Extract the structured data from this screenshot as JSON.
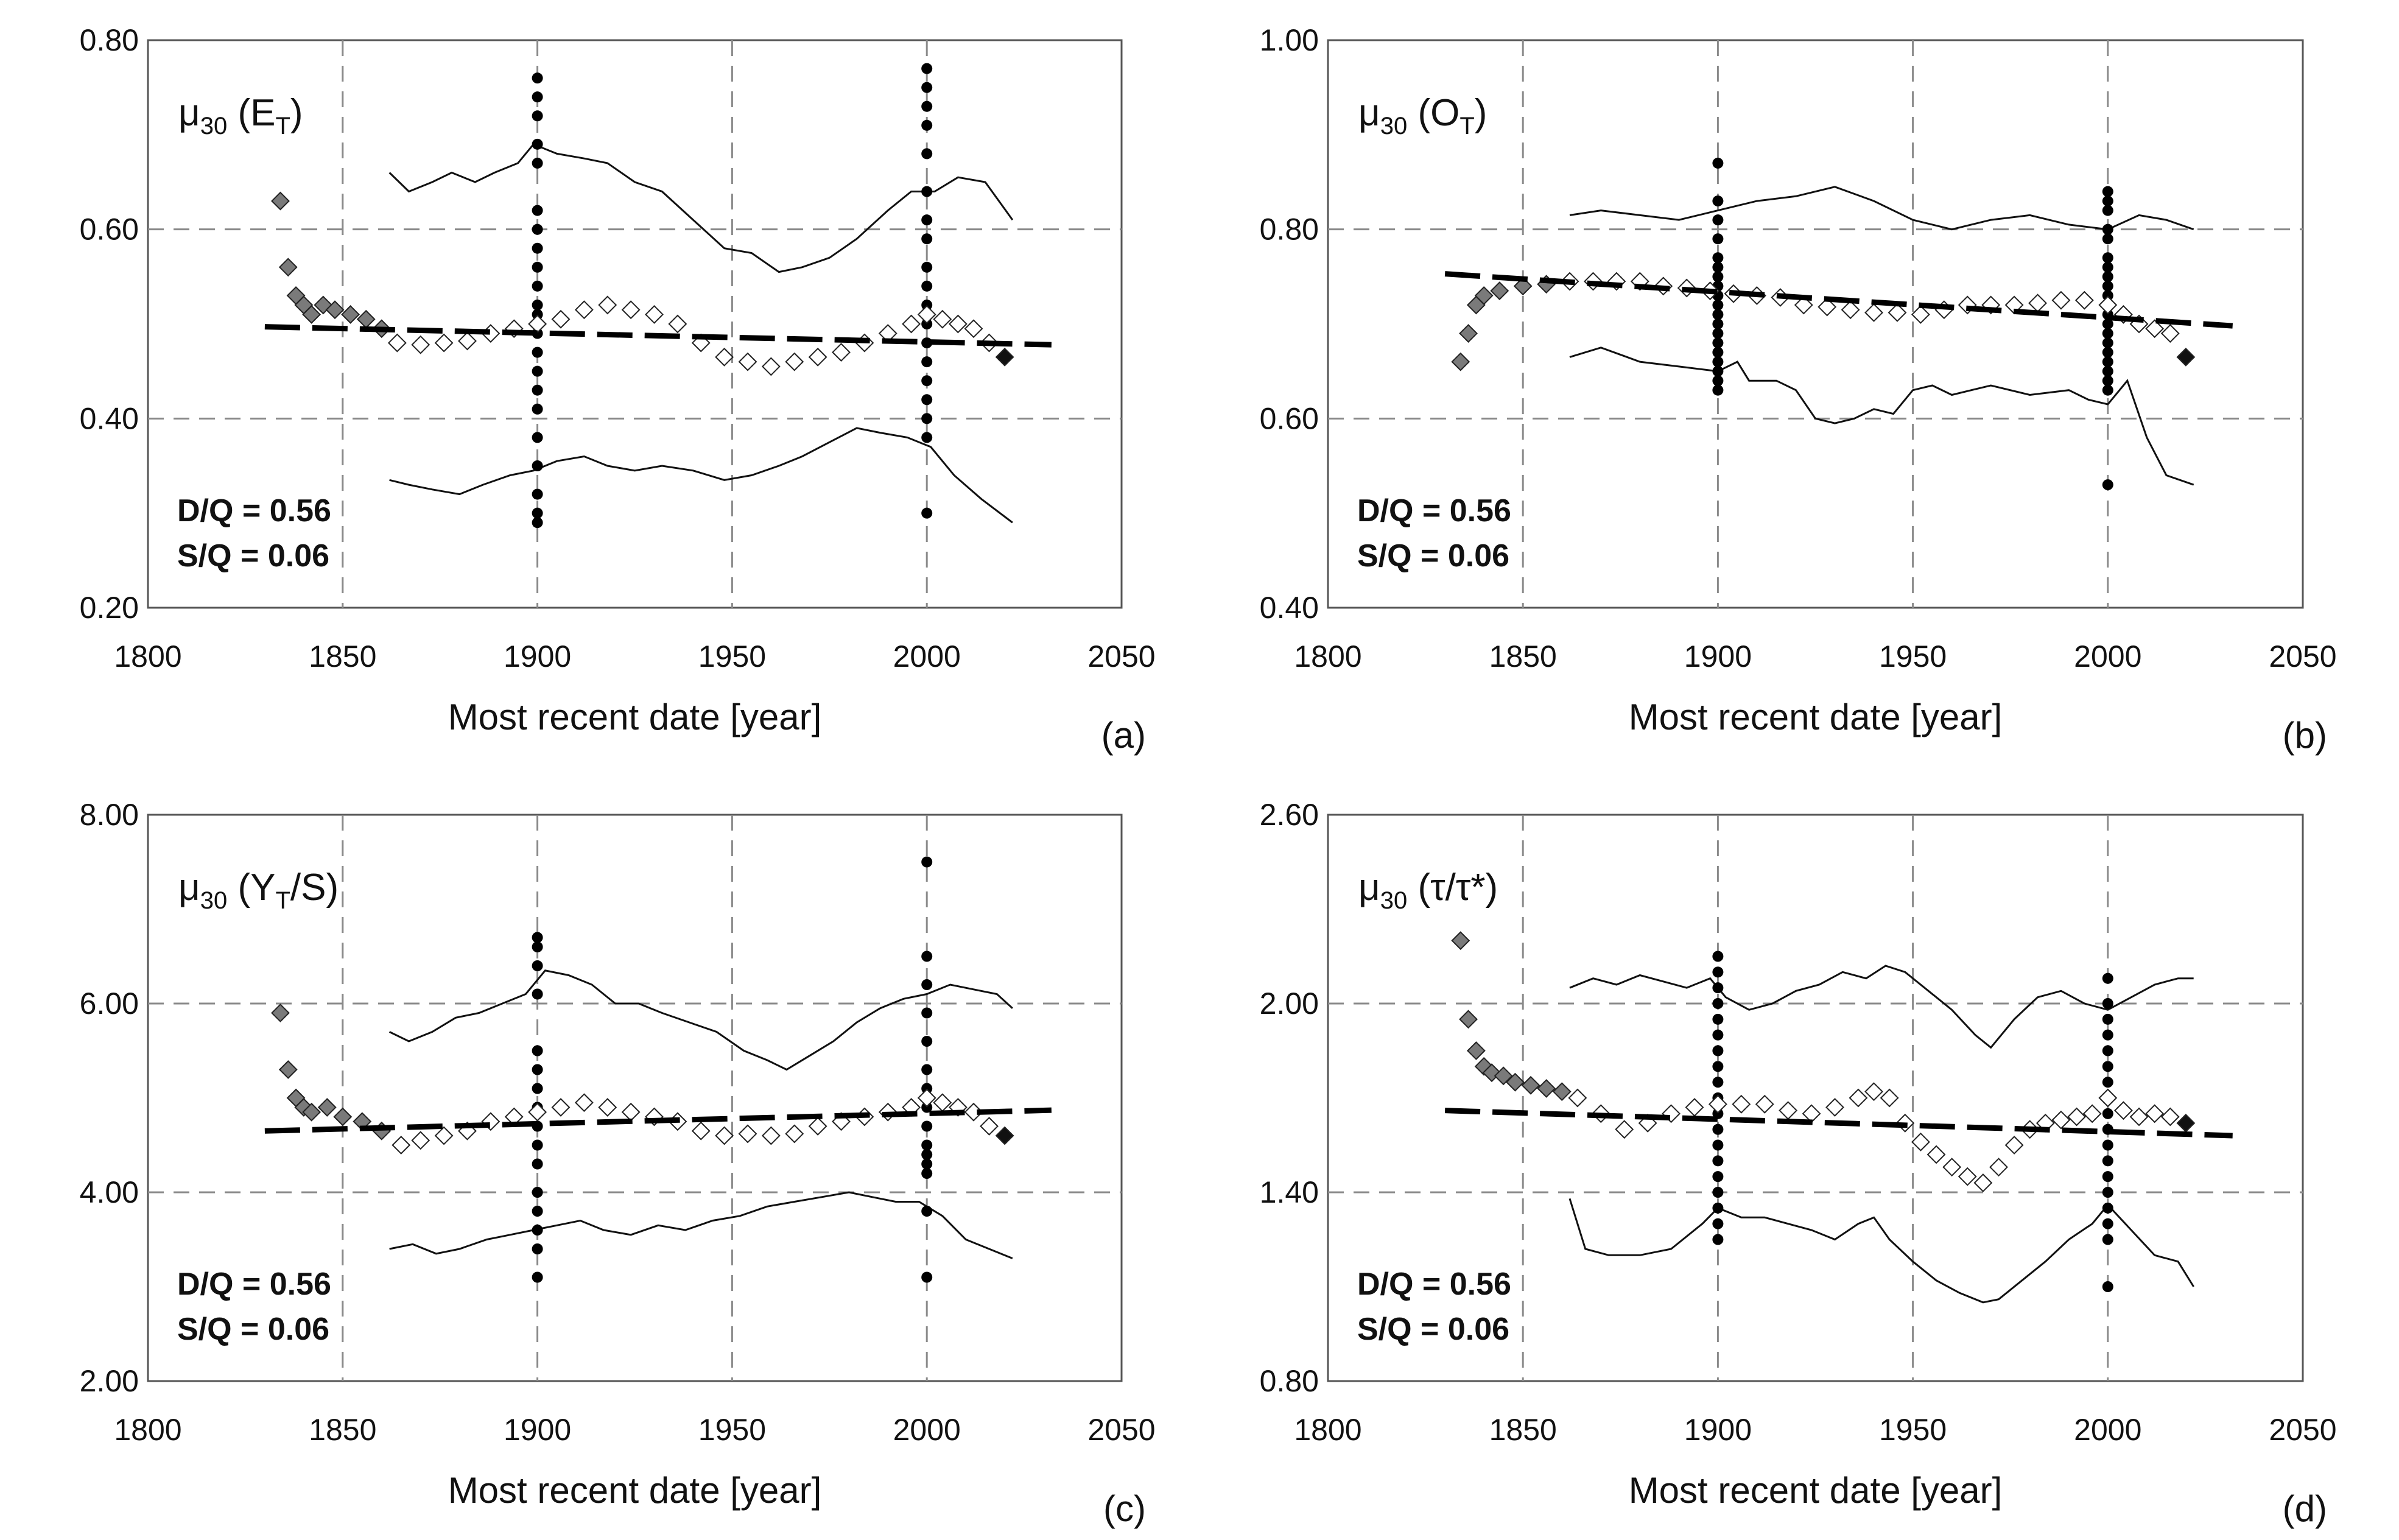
{
  "chart_data": [
    {
      "type": "scatter",
      "panel": "(a)",
      "ylabel": {
        "mu": "μ",
        "sub": "30",
        "pre": " (E",
        "tsub": "T",
        "post": ")"
      },
      "xlabel": "Most recent date [year]",
      "x_ticks": [
        "1800",
        "1850",
        "1900",
        "1950",
        "2000",
        "2050"
      ],
      "y_ticks": [
        "0.20",
        "0.40",
        "0.60",
        "0.80"
      ],
      "xlim": [
        1800,
        2050
      ],
      "ylim": [
        0.2,
        0.8
      ],
      "annotations": [
        "D/Q = 0.56",
        "S/Q =  0.06"
      ],
      "trend": {
        "x": [
          1830,
          2032
        ],
        "y": [
          0.497,
          0.478
        ]
      },
      "upper_band": {
        "x": [
          1862,
          1867,
          1873,
          1878,
          1884,
          1889,
          1895,
          1899,
          1905,
          1912,
          1918,
          1925,
          1932,
          1940,
          1948,
          1955,
          1962,
          1968,
          1975,
          1982,
          1990,
          1996,
          2002,
          2008,
          2015,
          2022
        ],
        "y": [
          0.66,
          0.64,
          0.65,
          0.66,
          0.65,
          0.66,
          0.67,
          0.69,
          0.68,
          0.675,
          0.67,
          0.65,
          0.64,
          0.61,
          0.58,
          0.575,
          0.555,
          0.56,
          0.57,
          0.59,
          0.62,
          0.64,
          0.64,
          0.655,
          0.65,
          0.61
        ]
      },
      "lower_band": {
        "x": [
          1862,
          1867,
          1873,
          1880,
          1886,
          1893,
          1899,
          1905,
          1912,
          1918,
          1925,
          1932,
          1940,
          1948,
          1955,
          1962,
          1968,
          1975,
          1982,
          1988,
          1995,
          2001,
          2007,
          2014,
          2022
        ],
        "y": [
          0.335,
          0.33,
          0.325,
          0.32,
          0.33,
          0.34,
          0.345,
          0.355,
          0.36,
          0.35,
          0.345,
          0.35,
          0.345,
          0.335,
          0.34,
          0.35,
          0.36,
          0.375,
          0.39,
          0.385,
          0.38,
          0.37,
          0.34,
          0.315,
          0.29
        ]
      },
      "mean_x": [
        1834,
        1836,
        1838,
        1840,
        1842,
        1845,
        1848,
        1852,
        1856,
        1860,
        1864,
        1870,
        1876,
        1882,
        1888,
        1894,
        1900,
        1906,
        1912,
        1918,
        1924,
        1930,
        1936,
        1942,
        1948,
        1954,
        1960,
        1966,
        1972,
        1978,
        1984,
        1990,
        1996,
        2000,
        2004,
        2008,
        2012,
        2016,
        2020
      ],
      "mean_y": [
        0.63,
        0.56,
        0.53,
        0.52,
        0.51,
        0.52,
        0.515,
        0.51,
        0.505,
        0.495,
        0.48,
        0.478,
        0.48,
        0.482,
        0.49,
        0.495,
        0.5,
        0.505,
        0.515,
        0.52,
        0.515,
        0.51,
        0.5,
        0.48,
        0.465,
        0.46,
        0.455,
        0.46,
        0.465,
        0.47,
        0.48,
        0.49,
        0.5,
        0.51,
        0.505,
        0.5,
        0.495,
        0.48,
        0.465
      ],
      "sig_x": [
        1900,
        2000
      ],
      "sig_y": [
        [
          0.76,
          0.74,
          0.72,
          0.69,
          0.67,
          0.62,
          0.6,
          0.58,
          0.56,
          0.54,
          0.52,
          0.51,
          0.49,
          0.47,
          0.45,
          0.43,
          0.41,
          0.38,
          0.35,
          0.32,
          0.3,
          0.29
        ],
        [
          0.77,
          0.75,
          0.73,
          0.71,
          0.68,
          0.64,
          0.61,
          0.59,
          0.56,
          0.54,
          0.52,
          0.5,
          0.48,
          0.46,
          0.44,
          0.42,
          0.4,
          0.38,
          0.3
        ]
      ]
    },
    {
      "type": "scatter",
      "panel": "(b)",
      "ylabel": {
        "mu": "μ",
        "sub": "30",
        "pre": " (O",
        "tsub": "T",
        "post": ")"
      },
      "xlabel": "Most recent date [year]",
      "x_ticks": [
        "1800",
        "1850",
        "1900",
        "1950",
        "2000",
        "2050"
      ],
      "y_ticks": [
        "0.40",
        "0.60",
        "0.80",
        "1.00"
      ],
      "xlim": [
        1800,
        2050
      ],
      "ylim": [
        0.4,
        1.0
      ],
      "annotations": [
        "D/Q = 0.56",
        "S/Q =  0.06"
      ],
      "trend": {
        "x": [
          1830,
          2032
        ],
        "y": [
          0.753,
          0.698
        ]
      },
      "upper_band": {
        "x": [
          1862,
          1870,
          1880,
          1890,
          1900,
          1910,
          1920,
          1930,
          1940,
          1950,
          1960,
          1970,
          1980,
          1990,
          2000,
          2008,
          2015,
          2022
        ],
        "y": [
          0.815,
          0.82,
          0.815,
          0.81,
          0.82,
          0.83,
          0.835,
          0.845,
          0.83,
          0.81,
          0.8,
          0.81,
          0.815,
          0.805,
          0.8,
          0.815,
          0.81,
          0.8
        ]
      },
      "lower_band": {
        "x": [
          1862,
          1870,
          1880,
          1890,
          1900,
          1905,
          1908,
          1915,
          1920,
          1925,
          1930,
          1935,
          1940,
          1945,
          1950,
          1955,
          1960,
          1965,
          1970,
          1980,
          1990,
          1995,
          2000,
          2005,
          2010,
          2015,
          2022
        ],
        "y": [
          0.665,
          0.675,
          0.66,
          0.655,
          0.65,
          0.66,
          0.64,
          0.64,
          0.63,
          0.6,
          0.595,
          0.6,
          0.61,
          0.605,
          0.63,
          0.635,
          0.625,
          0.63,
          0.635,
          0.625,
          0.63,
          0.62,
          0.615,
          0.64,
          0.58,
          0.54,
          0.53
        ]
      },
      "mean_x": [
        1834,
        1836,
        1838,
        1840,
        1844,
        1850,
        1856,
        1862,
        1868,
        1874,
        1880,
        1886,
        1892,
        1898,
        1904,
        1910,
        1916,
        1922,
        1928,
        1934,
        1940,
        1946,
        1952,
        1958,
        1964,
        1970,
        1976,
        1982,
        1988,
        1994,
        2000,
        2004,
        2008,
        2012,
        2016,
        2020
      ],
      "mean_y": [
        0.66,
        0.69,
        0.72,
        0.73,
        0.735,
        0.74,
        0.742,
        0.745,
        0.745,
        0.745,
        0.745,
        0.74,
        0.738,
        0.735,
        0.732,
        0.73,
        0.728,
        0.72,
        0.718,
        0.715,
        0.712,
        0.712,
        0.71,
        0.715,
        0.72,
        0.72,
        0.72,
        0.722,
        0.725,
        0.725,
        0.72,
        0.71,
        0.7,
        0.695,
        0.69,
        0.665
      ],
      "sig_x": [
        1900,
        2000
      ],
      "sig_y": [
        [
          0.87,
          0.83,
          0.81,
          0.79,
          0.77,
          0.76,
          0.75,
          0.74,
          0.73,
          0.72,
          0.71,
          0.7,
          0.69,
          0.68,
          0.67,
          0.66,
          0.65,
          0.64,
          0.63
        ],
        [
          0.84,
          0.83,
          0.82,
          0.8,
          0.79,
          0.77,
          0.76,
          0.75,
          0.74,
          0.73,
          0.72,
          0.71,
          0.7,
          0.69,
          0.68,
          0.67,
          0.66,
          0.65,
          0.64,
          0.63,
          0.53
        ]
      ]
    },
    {
      "type": "scatter",
      "panel": "(c)",
      "ylabel": {
        "mu": "μ",
        "sub": "30",
        "pre": " (Y",
        "tsub": "T",
        "post": "/S)"
      },
      "xlabel": "Most recent date [year]",
      "x_ticks": [
        "1800",
        "1850",
        "1900",
        "1950",
        "2000",
        "2050"
      ],
      "y_ticks": [
        "2.00",
        "4.00",
        "6.00",
        "8.00"
      ],
      "xlim": [
        1800,
        2050
      ],
      "ylim": [
        2.0,
        8.0
      ],
      "annotations": [
        "D/Q = 0.56",
        "S/Q =  0.06"
      ],
      "trend": {
        "x": [
          1830,
          2032
        ],
        "y": [
          4.65,
          4.87
        ]
      },
      "upper_band": {
        "x": [
          1862,
          1867,
          1873,
          1879,
          1885,
          1891,
          1897,
          1902,
          1908,
          1914,
          1920,
          1926,
          1932,
          1939,
          1946,
          1953,
          1959,
          1964,
          1970,
          1976,
          1982,
          1988,
          1994,
          2000,
          2006,
          2012,
          2018,
          2022
        ],
        "y": [
          5.7,
          5.6,
          5.7,
          5.85,
          5.9,
          6.0,
          6.1,
          6.35,
          6.3,
          6.2,
          6.0,
          6.0,
          5.9,
          5.8,
          5.7,
          5.5,
          5.4,
          5.3,
          5.45,
          5.6,
          5.8,
          5.95,
          6.05,
          6.1,
          6.2,
          6.15,
          6.1,
          5.95
        ]
      },
      "lower_band": {
        "x": [
          1862,
          1868,
          1874,
          1880,
          1887,
          1893,
          1899,
          1905,
          1911,
          1917,
          1924,
          1931,
          1938,
          1945,
          1952,
          1959,
          1966,
          1973,
          1980,
          1986,
          1992,
          1998,
          2004,
          2010,
          2016,
          2022
        ],
        "y": [
          3.4,
          3.45,
          3.35,
          3.4,
          3.5,
          3.55,
          3.6,
          3.65,
          3.7,
          3.6,
          3.55,
          3.65,
          3.6,
          3.7,
          3.75,
          3.85,
          3.9,
          3.95,
          4.0,
          3.95,
          3.9,
          3.9,
          3.75,
          3.5,
          3.4,
          3.3
        ]
      },
      "mean_x": [
        1834,
        1836,
        1838,
        1840,
        1842,
        1846,
        1850,
        1855,
        1860,
        1865,
        1870,
        1876,
        1882,
        1888,
        1894,
        1900,
        1906,
        1912,
        1918,
        1924,
        1930,
        1936,
        1942,
        1948,
        1954,
        1960,
        1966,
        1972,
        1978,
        1984,
        1990,
        1996,
        2000,
        2004,
        2008,
        2012,
        2016,
        2020
      ],
      "mean_y": [
        5.9,
        5.3,
        5.0,
        4.9,
        4.85,
        4.9,
        4.8,
        4.75,
        4.65,
        4.5,
        4.55,
        4.6,
        4.65,
        4.75,
        4.8,
        4.85,
        4.9,
        4.95,
        4.9,
        4.85,
        4.8,
        4.75,
        4.65,
        4.6,
        4.62,
        4.6,
        4.62,
        4.7,
        4.75,
        4.8,
        4.85,
        4.9,
        5.0,
        4.95,
        4.9,
        4.85,
        4.7,
        4.6
      ],
      "sig_x": [
        1900,
        2000
      ],
      "sig_y": [
        [
          6.7,
          6.6,
          6.4,
          6.1,
          5.5,
          5.3,
          5.1,
          4.9,
          4.7,
          4.5,
          4.3,
          4.0,
          3.8,
          3.6,
          3.4,
          3.1
        ],
        [
          7.5,
          6.5,
          6.2,
          5.9,
          5.6,
          5.3,
          5.1,
          4.9,
          4.7,
          4.5,
          4.4,
          4.3,
          4.2,
          3.8,
          3.1
        ]
      ]
    },
    {
      "type": "scatter",
      "panel": "(d)",
      "ylabel": {
        "mu": "μ",
        "sub": "30",
        "pre": " (τ/τ*)",
        "tsub": "",
        "post": ""
      },
      "xlabel": "Most recent date [year]",
      "x_ticks": [
        "1800",
        "1850",
        "1900",
        "1950",
        "2000",
        "2050"
      ],
      "y_ticks": [
        "0.80",
        "1.40",
        "2.00",
        "2.60"
      ],
      "xlim": [
        1800,
        2050
      ],
      "ylim": [
        0.8,
        2.6
      ],
      "annotations": [
        "D/Q = 0.56",
        "S/Q =  0.06"
      ],
      "trend": {
        "x": [
          1830,
          2032
        ],
        "y": [
          1.66,
          1.58
        ]
      },
      "upper_band": {
        "x": [
          1862,
          1868,
          1874,
          1880,
          1886,
          1892,
          1898,
          1902,
          1908,
          1914,
          1920,
          1926,
          1932,
          1938,
          1943,
          1948,
          1954,
          1960,
          1966,
          1970,
          1976,
          1982,
          1988,
          1994,
          2000,
          2006,
          2012,
          2018,
          2022
        ],
        "y": [
          2.05,
          2.08,
          2.06,
          2.09,
          2.07,
          2.05,
          2.08,
          2.02,
          1.98,
          2.0,
          2.04,
          2.06,
          2.1,
          2.08,
          2.12,
          2.1,
          2.04,
          1.98,
          1.9,
          1.86,
          1.95,
          2.02,
          2.04,
          2.0,
          1.98,
          2.02,
          2.06,
          2.08,
          2.08
        ]
      },
      "lower_band": {
        "x": [
          1862,
          1866,
          1872,
          1880,
          1888,
          1896,
          1900,
          1906,
          1912,
          1918,
          1924,
          1930,
          1936,
          1940,
          1944,
          1950,
          1956,
          1962,
          1968,
          1972,
          1978,
          1984,
          1990,
          1996,
          2000,
          2006,
          2012,
          2018,
          2022
        ],
        "y": [
          1.38,
          1.22,
          1.2,
          1.2,
          1.22,
          1.3,
          1.35,
          1.32,
          1.32,
          1.3,
          1.28,
          1.25,
          1.3,
          1.32,
          1.25,
          1.18,
          1.12,
          1.08,
          1.05,
          1.06,
          1.12,
          1.18,
          1.25,
          1.3,
          1.36,
          1.28,
          1.2,
          1.18,
          1.1
        ]
      },
      "mean_x": [
        1834,
        1836,
        1838,
        1840,
        1842,
        1845,
        1848,
        1852,
        1856,
        1860,
        1864,
        1870,
        1876,
        1882,
        1888,
        1894,
        1900,
        1906,
        1912,
        1918,
        1924,
        1930,
        1936,
        1940,
        1944,
        1948,
        1952,
        1956,
        1960,
        1964,
        1968,
        1972,
        1976,
        1980,
        1984,
        1988,
        1992,
        1996,
        2000,
        2004,
        2008,
        2012,
        2016,
        2020
      ],
      "mean_y": [
        2.2,
        1.95,
        1.85,
        1.8,
        1.78,
        1.77,
        1.75,
        1.74,
        1.73,
        1.72,
        1.7,
        1.65,
        1.6,
        1.62,
        1.65,
        1.67,
        1.68,
        1.68,
        1.68,
        1.66,
        1.65,
        1.67,
        1.7,
        1.72,
        1.7,
        1.62,
        1.56,
        1.52,
        1.48,
        1.45,
        1.43,
        1.48,
        1.55,
        1.6,
        1.62,
        1.63,
        1.64,
        1.65,
        1.7,
        1.66,
        1.64,
        1.65,
        1.64,
        1.62
      ],
      "sig_x": [
        1900,
        2000
      ],
      "sig_y": [
        [
          2.15,
          2.1,
          2.05,
          2.0,
          1.95,
          1.9,
          1.85,
          1.8,
          1.75,
          1.7,
          1.65,
          1.6,
          1.55,
          1.5,
          1.45,
          1.4,
          1.35,
          1.3,
          1.25
        ],
        [
          2.08,
          2.0,
          1.95,
          1.9,
          1.85,
          1.8,
          1.75,
          1.7,
          1.65,
          1.6,
          1.55,
          1.5,
          1.45,
          1.4,
          1.35,
          1.3,
          1.25,
          1.1
        ]
      ]
    }
  ]
}
